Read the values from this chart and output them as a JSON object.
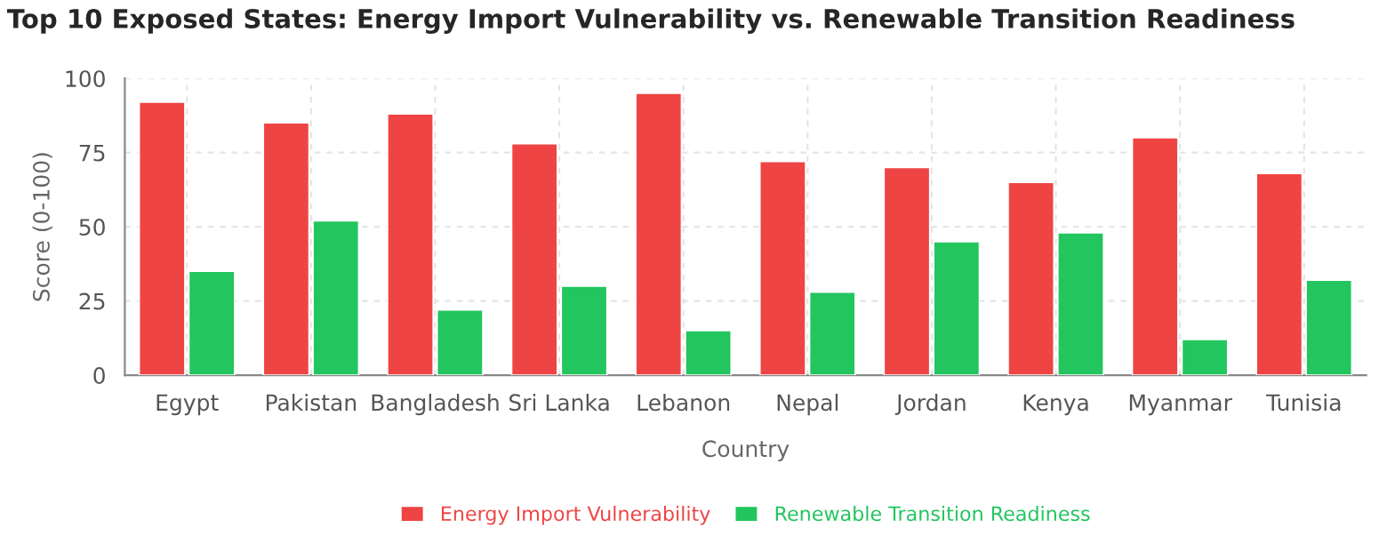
{
  "chart_data": {
    "type": "bar",
    "title": "Top 10 Exposed States: Energy Import Vulnerability vs. Renewable Transition Readiness",
    "xlabel": "Country",
    "ylabel": "Score (0-100)",
    "categories": [
      "Egypt",
      "Pakistan",
      "Bangladesh",
      "Sri Lanka",
      "Lebanon",
      "Nepal",
      "Jordan",
      "Kenya",
      "Myanmar",
      "Tunisia"
    ],
    "series": [
      {
        "name": "Energy Import Vulnerability",
        "color": "#ef4444",
        "values": [
          92,
          85,
          88,
          78,
          95,
          72,
          70,
          65,
          80,
          68
        ]
      },
      {
        "name": "Renewable Transition Readiness",
        "color": "#22c55e",
        "values": [
          35,
          52,
          22,
          30,
          15,
          28,
          45,
          48,
          12,
          32
        ]
      }
    ],
    "ylim": [
      0,
      100
    ],
    "yticks": [
      0,
      25,
      50,
      75,
      100
    ],
    "grid": true,
    "legend": "bottom"
  }
}
